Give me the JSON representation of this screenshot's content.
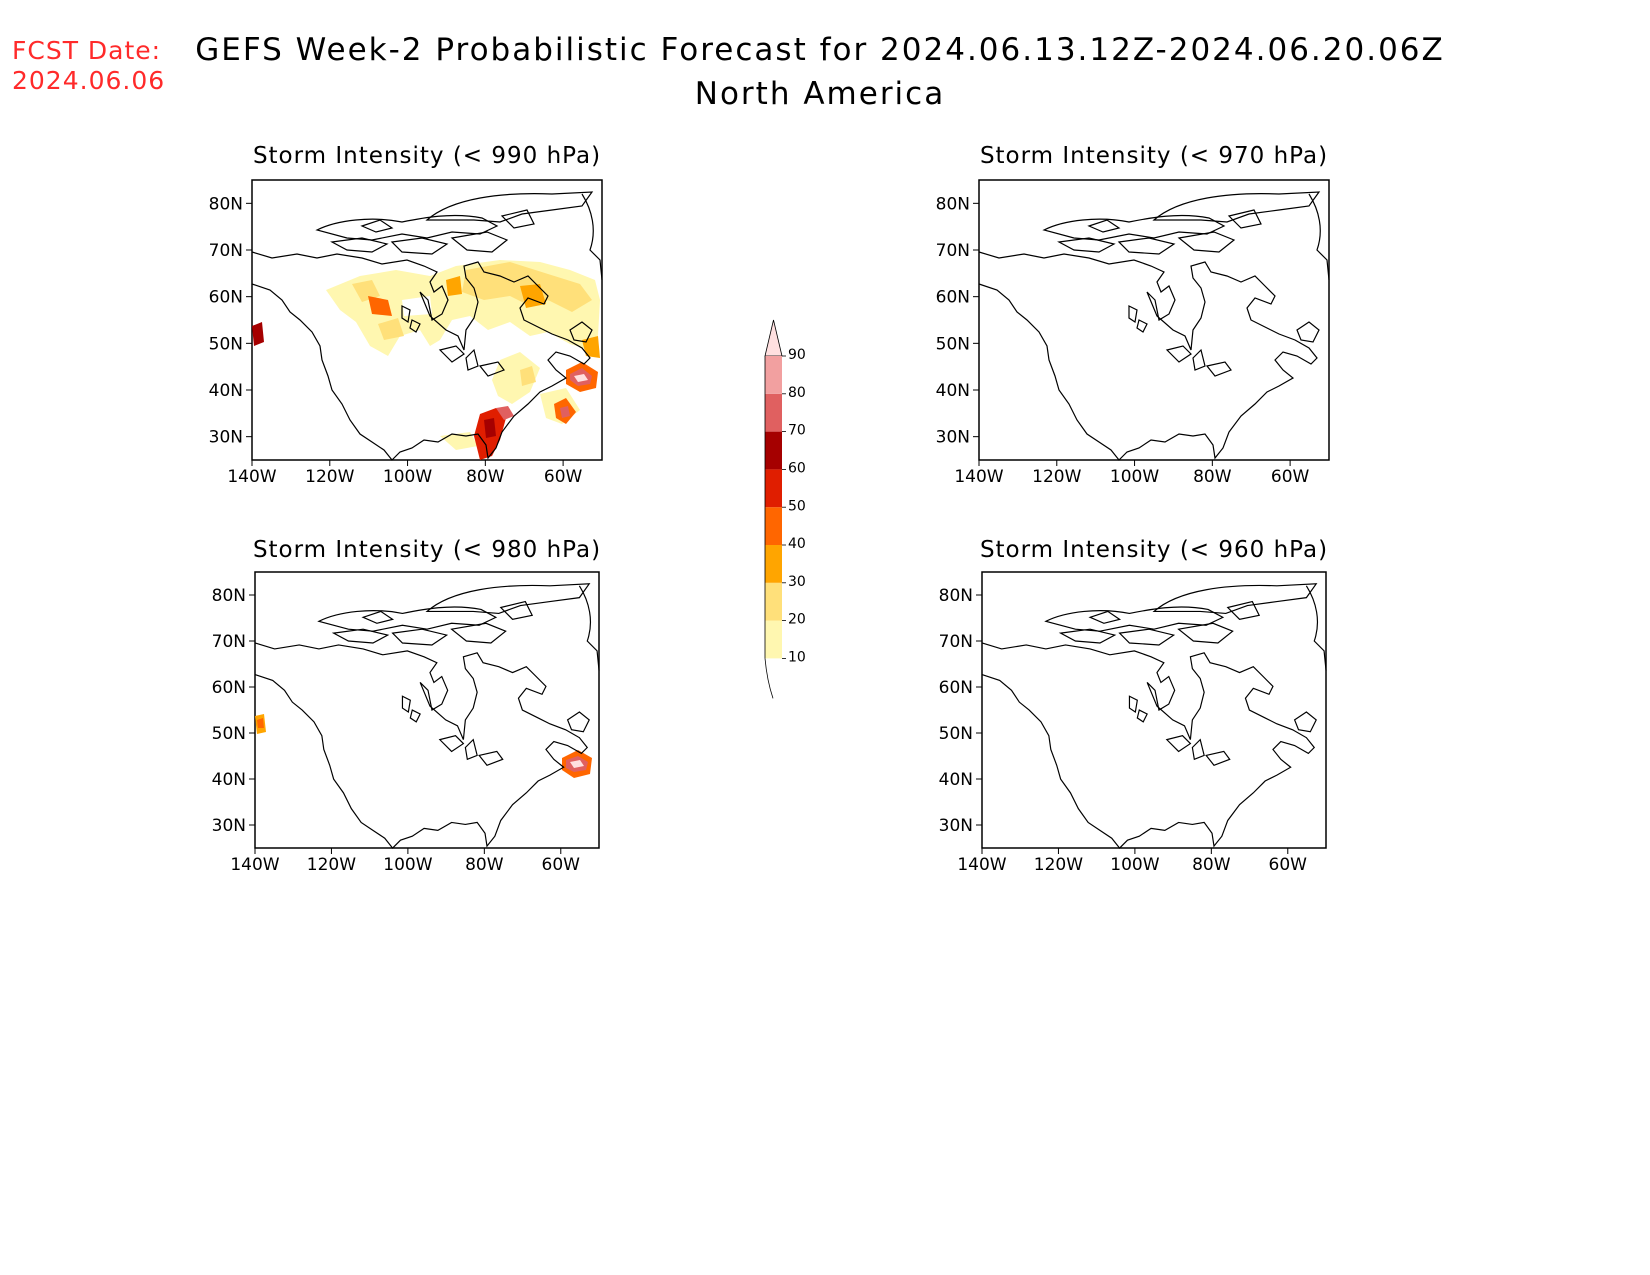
{
  "header": {
    "fcst_label": "FCST Date:",
    "fcst_date": "2024.06.06",
    "title": "GEFS Week-2 Probabilistic Forecast for 2024.06.13.12Z-2024.06.20.06Z",
    "subtitle": "North America"
  },
  "panels": [
    {
      "title": "Storm Intensity (< 990 hPa)"
    },
    {
      "title": "Storm Intensity (< 970 hPa)"
    },
    {
      "title": "Storm Intensity (< 980 hPa)"
    },
    {
      "title": "Storm Intensity (< 960 hPa)"
    }
  ],
  "axes": {
    "lat_labels": [
      "80N",
      "70N",
      "60N",
      "50N",
      "40N",
      "30N"
    ],
    "lat_values": [
      80,
      70,
      60,
      50,
      40,
      30
    ],
    "lon_labels": [
      "140W",
      "120W",
      "100W",
      "80W",
      "60W"
    ],
    "lon_values": [
      -140,
      -120,
      -100,
      -80,
      -60
    ],
    "lon_range": [
      -140,
      -50
    ],
    "lat_range": [
      25,
      85
    ]
  },
  "colorbar": {
    "labels": [
      "10",
      "20",
      "30",
      "40",
      "50",
      "60",
      "70",
      "80",
      "90"
    ],
    "colors": [
      "#fff7b0",
      "#ffe07a",
      "#ffa500",
      "#ff6600",
      "#e01e00",
      "#a50000",
      "#e06060",
      "#f2a0a0",
      "#ffe0e0"
    ]
  },
  "probability_areas": [
    {
      "panel": 0,
      "level": "10-20",
      "region": "central and eastern Canada, Hudson Bay region",
      "color": "#fff7b0"
    },
    {
      "panel": 0,
      "level": "20-30",
      "region": "scattered patches over Canada and Atlantic coast",
      "color": "#ffe07a"
    },
    {
      "panel": 0,
      "level": "30-50",
      "region": "Hudson Bay and Labrador",
      "color": "#ffa500"
    },
    {
      "panel": 0,
      "level": "50-90",
      "region": "Gulf of Alaska, Florida, off Nova Scotia",
      "color": "#e01e00"
    },
    {
      "panel": 2,
      "level": "30-90",
      "region": "Gulf of Alaska and off Nova Scotia",
      "color": "#e01e00"
    }
  ]
}
